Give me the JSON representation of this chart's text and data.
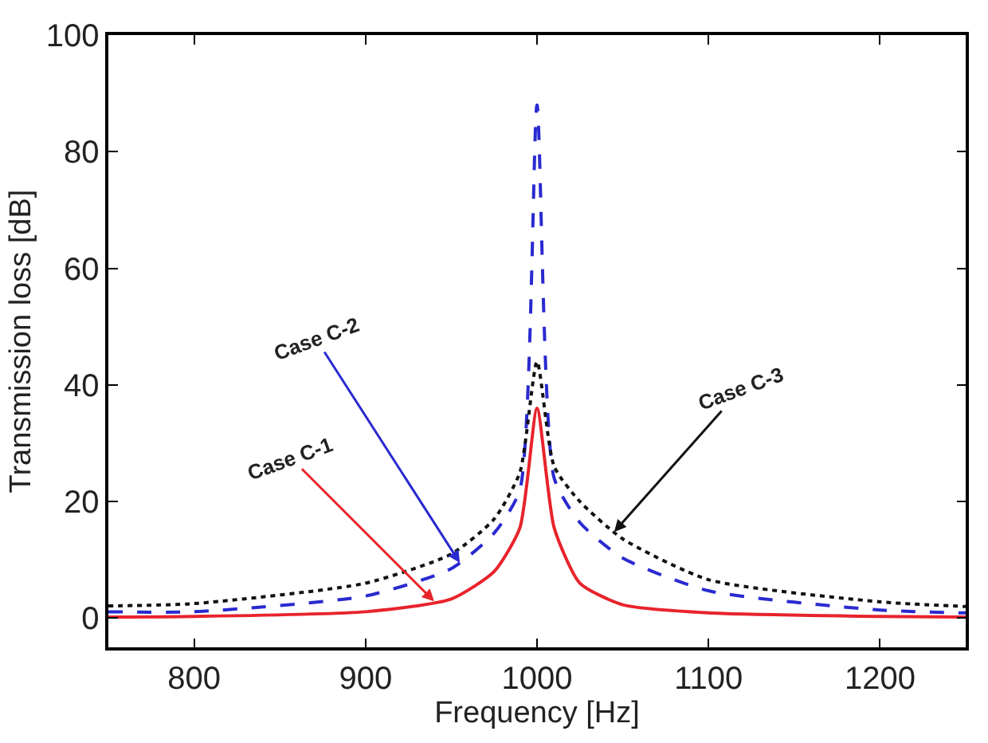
{
  "chart_data": {
    "type": "line",
    "xlabel": "Frequency [Hz]",
    "ylabel": "Transmission loss [dB]",
    "xlim": [
      750,
      1250
    ],
    "ylim": [
      -5,
      100
    ],
    "xticks": [
      800,
      900,
      1000,
      1100,
      1200
    ],
    "yticks": [
      0,
      20,
      40,
      60,
      80,
      100
    ],
    "series": [
      {
        "color": "#e8232b",
        "line_style": "solid",
        "x": [
          750,
          800,
          900,
          950,
          975,
          990,
          1000,
          1010,
          1025,
          1050,
          1100,
          1200,
          1250
        ],
        "values": [
          0.2,
          0.3,
          1.1,
          3.3,
          8,
          15.5,
          36,
          15.5,
          6,
          2.3,
          0.9,
          0.3,
          0.2
        ]
      },
      {
        "color": "#2a2ad0",
        "line_style": "dashed",
        "x": [
          750,
          800,
          900,
          950,
          975,
          990,
          1000,
          1010,
          1025,
          1050,
          1100,
          1200,
          1250
        ],
        "values": [
          1.1,
          1.1,
          3.8,
          8.5,
          14.6,
          22,
          88,
          24,
          16.4,
          10.3,
          4.7,
          1.4,
          0.9
        ]
      },
      {
        "color": "#111111",
        "line_style": "dotted",
        "x": [
          750,
          800,
          900,
          950,
          975,
          990,
          1000,
          1010,
          1025,
          1050,
          1100,
          1200,
          1250
        ],
        "values": [
          2.1,
          2.5,
          6,
          11,
          17,
          25,
          44,
          26,
          20,
          13.6,
          6.6,
          2.8,
          2
        ]
      }
    ],
    "annotations": [
      {
        "text": "Case C-1",
        "x": 940,
        "y": 2.9
      },
      {
        "text": "Case C-2",
        "x": 955,
        "y": 9.5
      },
      {
        "text": "Case C-3",
        "x": 1045,
        "y": 14.8
      }
    ]
  }
}
